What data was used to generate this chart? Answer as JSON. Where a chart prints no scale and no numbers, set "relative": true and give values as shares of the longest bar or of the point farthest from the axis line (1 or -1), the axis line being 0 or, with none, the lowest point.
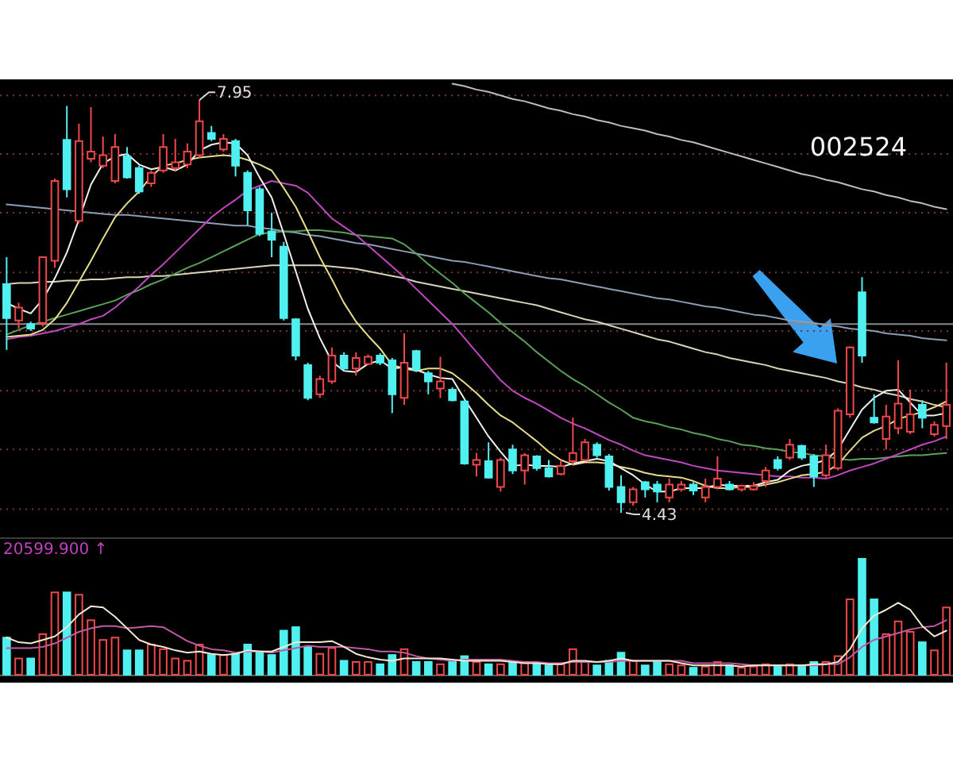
{
  "chart_data": [
    {
      "type": "candlestick",
      "title": "002524",
      "categories": [
        null,
        null,
        null,
        null,
        null,
        null,
        null,
        null,
        null,
        null,
        null,
        null,
        null,
        null,
        null,
        null,
        null,
        null,
        null,
        null,
        null,
        null,
        null,
        null,
        null,
        null,
        null,
        null,
        null,
        null,
        null,
        null,
        null,
        null,
        null,
        null,
        null,
        null,
        null,
        null,
        null,
        null,
        null,
        null,
        null,
        null,
        null,
        null,
        null,
        null,
        null,
        null,
        null,
        null,
        null,
        null,
        null,
        null,
        null,
        null,
        null,
        null,
        null,
        null,
        null,
        null,
        null,
        null,
        null,
        null,
        null,
        null,
        null,
        null,
        null,
        null,
        null,
        null,
        null
      ],
      "ohlc": [
        [
          6.38,
          6.61,
          5.82,
          6.09
        ],
        [
          6.07,
          6.22,
          6.0,
          6.18
        ],
        [
          6.04,
          6.06,
          5.98,
          6.0
        ],
        [
          6.05,
          6.61,
          6.02,
          6.61
        ],
        [
          6.58,
          7.28,
          6.52,
          7.26
        ],
        [
          7.61,
          7.9,
          7.12,
          7.19
        ],
        [
          6.92,
          7.75,
          6.9,
          7.6
        ],
        [
          7.45,
          7.89,
          7.42,
          7.51
        ],
        [
          7.39,
          7.64,
          7.37,
          7.48
        ],
        [
          7.26,
          7.66,
          7.24,
          7.55
        ],
        [
          7.47,
          7.55,
          7.28,
          7.29
        ],
        [
          7.37,
          7.39,
          7.15,
          7.17
        ],
        [
          7.24,
          7.35,
          7.21,
          7.33
        ],
        [
          7.35,
          7.66,
          7.33,
          7.55
        ],
        [
          7.37,
          7.62,
          7.35,
          7.42
        ],
        [
          7.4,
          7.58,
          7.37,
          7.51
        ],
        [
          7.48,
          7.95,
          7.46,
          7.77
        ],
        [
          7.67,
          7.73,
          7.6,
          7.62
        ],
        [
          7.53,
          7.66,
          7.51,
          7.62
        ],
        [
          7.6,
          7.62,
          7.3,
          7.39
        ],
        [
          7.33,
          7.35,
          6.88,
          7.01
        ],
        [
          7.19,
          7.21,
          6.79,
          6.81
        ],
        [
          6.83,
          6.99,
          6.61,
          6.76
        ],
        [
          6.7,
          6.74,
          6.07,
          6.09
        ],
        [
          6.08,
          6.09,
          5.73,
          5.77
        ],
        [
          5.69,
          5.71,
          5.39,
          5.41
        ],
        [
          5.44,
          5.6,
          5.41,
          5.57
        ],
        [
          5.55,
          5.84,
          5.53,
          5.77
        ],
        [
          5.77,
          5.8,
          5.65,
          5.66
        ],
        [
          5.66,
          5.8,
          5.6,
          5.75
        ],
        [
          5.7,
          5.78,
          5.69,
          5.76
        ],
        [
          5.77,
          5.79,
          5.69,
          5.71
        ],
        [
          5.73,
          5.75,
          5.28,
          5.44
        ],
        [
          5.41,
          5.96,
          5.35,
          5.71
        ],
        [
          5.81,
          5.82,
          5.63,
          5.65
        ],
        [
          5.62,
          5.64,
          5.44,
          5.55
        ],
        [
          5.49,
          5.76,
          5.41,
          5.55
        ],
        [
          5.48,
          5.5,
          5.38,
          5.39
        ],
        [
          5.38,
          5.39,
          4.84,
          4.85
        ],
        [
          4.84,
          4.94,
          4.74,
          4.88
        ],
        [
          4.87,
          5.03,
          4.72,
          4.73
        ],
        [
          4.65,
          4.9,
          4.61,
          4.88
        ],
        [
          4.97,
          5.01,
          4.76,
          4.79
        ],
        [
          4.79,
          4.94,
          4.67,
          4.92
        ],
        [
          4.91,
          4.92,
          4.79,
          4.81
        ],
        [
          4.81,
          4.88,
          4.73,
          4.74
        ],
        [
          4.76,
          4.88,
          4.75,
          4.83
        ],
        [
          4.87,
          5.24,
          4.84,
          4.94
        ],
        [
          4.88,
          5.06,
          4.87,
          5.03
        ],
        [
          5.01,
          5.03,
          4.9,
          4.92
        ],
        [
          4.91,
          4.93,
          4.62,
          4.65
        ],
        [
          4.65,
          4.75,
          4.43,
          4.52
        ],
        [
          4.52,
          4.65,
          4.49,
          4.63
        ],
        [
          4.69,
          4.7,
          4.56,
          4.63
        ],
        [
          4.67,
          4.7,
          4.52,
          4.61
        ],
        [
          4.56,
          4.72,
          4.52,
          4.67
        ],
        [
          4.63,
          4.7,
          4.61,
          4.67
        ],
        [
          4.67,
          4.69,
          4.58,
          4.62
        ],
        [
          4.56,
          4.72,
          4.52,
          4.65
        ],
        [
          4.65,
          4.91,
          4.63,
          4.72
        ],
        [
          4.67,
          4.7,
          4.62,
          4.63
        ],
        [
          4.63,
          4.67,
          4.61,
          4.66
        ],
        [
          4.63,
          4.69,
          4.62,
          4.66
        ],
        [
          4.7,
          4.82,
          4.65,
          4.79
        ],
        [
          4.88,
          4.91,
          4.79,
          4.81
        ],
        [
          4.9,
          5.06,
          4.88,
          5.01
        ],
        [
          5.0,
          5.01,
          4.88,
          4.9
        ],
        [
          4.91,
          4.93,
          4.65,
          4.74
        ],
        [
          4.75,
          5.01,
          4.73,
          4.92
        ],
        [
          4.81,
          5.32,
          4.79,
          5.3
        ],
        [
          5.27,
          5.85,
          5.24,
          5.84
        ],
        [
          6.31,
          6.44,
          5.71,
          5.77
        ],
        [
          5.24,
          5.44,
          5.19,
          5.2
        ],
        [
          5.06,
          5.35,
          4.97,
          5.25
        ],
        [
          5.15,
          5.73,
          5.1,
          5.36
        ],
        [
          5.12,
          5.48,
          5.1,
          5.27
        ],
        [
          5.35,
          5.39,
          5.15,
          5.24
        ],
        [
          5.1,
          5.21,
          5.08,
          5.18
        ],
        [
          5.17,
          5.71,
          5.06,
          5.35
        ]
      ],
      "colors": [
        "#50f0f0",
        "#f04848",
        "#50f0f0",
        "#f04848",
        "#f04848",
        "#50f0f0",
        "#f04848",
        "#f04848",
        "#f04848",
        "#f04848",
        "#50f0f0",
        "#50f0f0",
        "#f04848",
        "#f04848",
        "#f04848",
        "#f04848",
        "#f04848",
        "#50f0f0",
        "#f04848",
        "#50f0f0",
        "#50f0f0",
        "#50f0f0",
        "#50f0f0",
        "#50f0f0",
        "#50f0f0",
        "#50f0f0",
        "#f04848",
        "#f04848",
        "#50f0f0",
        "#f04848",
        "#f04848",
        "#50f0f0",
        "#50f0f0",
        "#f04848",
        "#50f0f0",
        "#50f0f0",
        "#f04848",
        "#50f0f0",
        "#50f0f0",
        "#f04848",
        "#50f0f0",
        "#f04848",
        "#50f0f0",
        "#f04848",
        "#50f0f0",
        "#50f0f0",
        "#f04848",
        "#f04848",
        "#f04848",
        "#50f0f0",
        "#50f0f0",
        "#50f0f0",
        "#f04848",
        "#50f0f0",
        "#50f0f0",
        "#f04848",
        "#f04848",
        "#50f0f0",
        "#f04848",
        "#f04848",
        "#50f0f0",
        "#f04848",
        "#f04848",
        "#f04848",
        "#50f0f0",
        "#f04848",
        "#50f0f0",
        "#50f0f0",
        "#f04848",
        "#f04848",
        "#f04848",
        "#50f0f0",
        "#50f0f0",
        "#f04848",
        "#f04848",
        "#f04848",
        "#50f0f0",
        "#f04848",
        "#f04848"
      ],
      "ylim": [
        4.24,
        8.1
      ],
      "yticks": [
        {
          "value": 7.99,
          "label": null
        },
        {
          "value": 7.49,
          "label": null
        },
        {
          "value": 6.99,
          "label": null
        },
        {
          "value": 6.48,
          "label": null
        },
        {
          "value": 5.98,
          "label": null
        },
        {
          "value": 5.47,
          "label": null
        },
        {
          "value": 4.97,
          "label": null
        },
        {
          "value": 4.46,
          "label": null
        }
      ],
      "grid": "y",
      "ref_lines": [
        {
          "axis": "y",
          "value": 6.04,
          "color": "#8a8a8a"
        }
      ],
      "series": [
        {
          "type": "line",
          "color": "#bcbcbc",
          "values": [
            null,
            null,
            null,
            null,
            null,
            null,
            null,
            null,
            null,
            null,
            null,
            null,
            null,
            null,
            null,
            null,
            null,
            null,
            null,
            null,
            null,
            null,
            null,
            null,
            null,
            null,
            null,
            null,
            null,
            null,
            null,
            null,
            null,
            null,
            null,
            null,
            null,
            8.09,
            8.07,
            8.04,
            8.02,
            7.99,
            7.96,
            7.94,
            7.91,
            7.88,
            7.86,
            7.83,
            7.81,
            7.78,
            7.76,
            7.73,
            7.71,
            7.69,
            7.66,
            7.64,
            7.61,
            7.59,
            7.56,
            7.53,
            7.5,
            7.47,
            7.44,
            7.41,
            7.38,
            7.35,
            7.32,
            7.3,
            7.27,
            7.25,
            7.22,
            7.19,
            7.17,
            7.14,
            7.12,
            7.09,
            7.07,
            7.04,
            7.02
          ]
        },
        {
          "type": "line",
          "color": "#8c9cb4",
          "values": [
            7.06,
            7.05,
            7.04,
            7.03,
            7.02,
            7.01,
            7.0,
            6.99,
            6.98,
            6.97,
            6.97,
            6.96,
            6.95,
            6.94,
            6.93,
            6.92,
            6.91,
            6.9,
            6.89,
            6.88,
            6.88,
            6.86,
            6.85,
            6.83,
            6.82,
            6.8,
            6.79,
            6.77,
            6.75,
            6.73,
            6.72,
            6.7,
            6.68,
            6.66,
            6.64,
            6.62,
            6.6,
            6.58,
            6.57,
            6.55,
            6.53,
            6.51,
            6.49,
            6.47,
            6.45,
            6.43,
            6.42,
            6.4,
            6.38,
            6.36,
            6.34,
            6.32,
            6.3,
            6.28,
            6.26,
            6.25,
            6.23,
            6.21,
            6.19,
            6.18,
            6.16,
            6.14,
            6.12,
            6.11,
            6.09,
            6.07,
            6.06,
            6.05,
            6.03,
            6.02,
            6.0,
            5.99,
            5.98,
            5.96,
            5.95,
            5.94,
            5.92,
            5.91,
            5.9
          ]
        },
        {
          "type": "line",
          "color": "#d8d4b8",
          "values": [
            6.38,
            6.39,
            6.39,
            6.4,
            6.4,
            6.41,
            6.41,
            6.42,
            6.42,
            6.43,
            6.44,
            6.44,
            6.45,
            6.45,
            6.46,
            6.47,
            6.48,
            6.49,
            6.5,
            6.51,
            6.52,
            6.53,
            6.54,
            6.54,
            6.54,
            6.54,
            6.54,
            6.53,
            6.52,
            6.51,
            6.49,
            6.47,
            6.45,
            6.43,
            6.4,
            6.38,
            6.36,
            6.34,
            6.32,
            6.3,
            6.28,
            6.26,
            6.24,
            6.22,
            6.2,
            6.17,
            6.14,
            6.11,
            6.08,
            6.06,
            6.03,
            6.0,
            5.97,
            5.94,
            5.91,
            5.89,
            5.86,
            5.83,
            5.8,
            5.78,
            5.75,
            5.73,
            5.71,
            5.69,
            5.66,
            5.64,
            5.62,
            5.6,
            5.58,
            5.55,
            5.53,
            5.5,
            5.48,
            5.45,
            5.43,
            5.4,
            5.38,
            5.35,
            5.33
          ]
        },
        {
          "type": "line",
          "color": "#5aa05a",
          "values": [
            5.95,
            5.99,
            6.03,
            6.06,
            6.09,
            6.12,
            6.15,
            6.18,
            6.21,
            6.24,
            6.29,
            6.33,
            6.38,
            6.42,
            6.47,
            6.52,
            6.56,
            6.61,
            6.66,
            6.71,
            6.76,
            6.81,
            6.82,
            6.83,
            6.83,
            6.84,
            6.84,
            6.83,
            6.82,
            6.8,
            6.79,
            6.78,
            6.77,
            6.72,
            6.64,
            6.55,
            6.47,
            6.39,
            6.3,
            6.22,
            6.14,
            6.05,
            5.97,
            5.89,
            5.8,
            5.72,
            5.64,
            5.57,
            5.51,
            5.44,
            5.37,
            5.31,
            5.24,
            5.21,
            5.19,
            5.16,
            5.14,
            5.11,
            5.09,
            5.06,
            5.04,
            5.01,
            5.0,
            4.98,
            4.97,
            4.95,
            4.94,
            4.92,
            4.91,
            4.89,
            4.88,
            4.89,
            4.89,
            4.9,
            4.91,
            4.92,
            4.92,
            4.93,
            4.94
          ]
        },
        {
          "type": "line",
          "color": "#c048c0",
          "values": [
            5.91,
            5.93,
            5.94,
            5.96,
            5.98,
            6.01,
            6.04,
            6.08,
            6.11,
            6.18,
            6.27,
            6.36,
            6.46,
            6.55,
            6.65,
            6.75,
            6.85,
            6.95,
            7.03,
            7.1,
            7.18,
            7.22,
            7.26,
            7.24,
            7.22,
            7.16,
            7.05,
            6.94,
            6.87,
            6.8,
            6.71,
            6.62,
            6.53,
            6.44,
            6.34,
            6.24,
            6.14,
            6.04,
            5.92,
            5.8,
            5.68,
            5.56,
            5.47,
            5.41,
            5.36,
            5.3,
            5.24,
            5.19,
            5.15,
            5.1,
            5.05,
            5.01,
            4.96,
            4.92,
            4.9,
            4.88,
            4.86,
            4.83,
            4.81,
            4.79,
            4.78,
            4.77,
            4.76,
            4.75,
            4.74,
            4.74,
            4.73,
            4.73,
            4.72,
            4.75,
            4.79,
            4.82,
            4.85,
            4.89,
            4.93,
            4.97,
            5.01,
            5.04,
            5.08
          ]
        },
        {
          "type": "line",
          "color": "#e6dc8c",
          "values": [
            5.93,
            5.94,
            5.95,
            5.99,
            6.08,
            6.22,
            6.4,
            6.58,
            6.77,
            6.95,
            7.07,
            7.17,
            7.3,
            7.39,
            7.41,
            7.44,
            7.46,
            7.47,
            7.48,
            7.47,
            7.44,
            7.4,
            7.35,
            7.2,
            7.04,
            6.83,
            6.61,
            6.42,
            6.22,
            6.06,
            5.94,
            5.83,
            5.69,
            5.66,
            5.64,
            5.66,
            5.66,
            5.62,
            5.54,
            5.45,
            5.35,
            5.26,
            5.2,
            5.12,
            5.04,
            4.95,
            4.88,
            4.84,
            4.86,
            4.86,
            4.85,
            4.82,
            4.8,
            4.77,
            4.75,
            4.74,
            4.73,
            4.7,
            4.66,
            4.64,
            4.64,
            4.65,
            4.65,
            4.67,
            4.69,
            4.72,
            4.75,
            4.76,
            4.78,
            4.84,
            4.96,
            5.07,
            5.13,
            5.17,
            5.23,
            5.26,
            5.29,
            5.33,
            5.38
          ]
        },
        {
          "type": "line",
          "color": "#f0f0f0",
          "values": [
            6.22,
            6.17,
            6.13,
            6.25,
            6.43,
            6.65,
            6.93,
            7.23,
            7.41,
            7.47,
            7.49,
            7.4,
            7.36,
            7.38,
            7.35,
            7.4,
            7.52,
            7.57,
            7.59,
            7.58,
            7.48,
            7.29,
            7.12,
            6.81,
            6.49,
            6.17,
            5.92,
            5.72,
            5.64,
            5.63,
            5.7,
            5.73,
            5.66,
            5.67,
            5.65,
            5.61,
            5.58,
            5.57,
            5.4,
            5.24,
            5.08,
            4.95,
            4.83,
            4.84,
            4.83,
            4.83,
            4.82,
            4.85,
            4.87,
            4.89,
            4.87,
            4.81,
            4.75,
            4.67,
            4.61,
            4.61,
            4.64,
            4.64,
            4.64,
            4.67,
            4.66,
            4.66,
            4.66,
            4.69,
            4.71,
            4.79,
            4.83,
            4.85,
            4.88,
            4.97,
            5.14,
            5.31,
            5.41,
            5.47,
            5.48,
            5.37,
            5.26,
            5.26,
            5.28
          ]
        }
      ],
      "annotations": [
        "7.95",
        "4.43"
      ]
    },
    {
      "type": "bar",
      "relative": true,
      "categories": [
        null,
        null,
        null,
        null,
        null,
        null,
        null,
        null,
        null,
        null,
        null,
        null,
        null,
        null,
        null,
        null,
        null,
        null,
        null,
        null,
        null,
        null,
        null,
        null,
        null,
        null,
        null,
        null,
        null,
        null,
        null,
        null,
        null,
        null,
        null,
        null,
        null,
        null,
        null,
        null,
        null,
        null,
        null,
        null,
        null,
        null,
        null,
        null,
        null,
        null,
        null,
        null,
        null,
        null,
        null,
        null,
        null,
        null,
        null,
        null,
        null,
        null,
        null,
        null,
        null,
        null,
        null,
        null,
        null,
        null,
        null,
        null,
        null,
        null,
        null,
        null,
        null,
        null,
        null
      ],
      "series": [
        {
          "colors": [
            "#50f0f0",
            "#f04848",
            "#50f0f0",
            "#f04848",
            "#f04848",
            "#50f0f0",
            "#f04848",
            "#f04848",
            "#f04848",
            "#f04848",
            "#50f0f0",
            "#50f0f0",
            "#f04848",
            "#f04848",
            "#f04848",
            "#f04848",
            "#f04848",
            "#50f0f0",
            "#f04848",
            "#50f0f0",
            "#50f0f0",
            "#50f0f0",
            "#50f0f0",
            "#50f0f0",
            "#50f0f0",
            "#50f0f0",
            "#f04848",
            "#f04848",
            "#50f0f0",
            "#f04848",
            "#f04848",
            "#50f0f0",
            "#50f0f0",
            "#f04848",
            "#50f0f0",
            "#50f0f0",
            "#f04848",
            "#50f0f0",
            "#50f0f0",
            "#f04848",
            "#50f0f0",
            "#f04848",
            "#50f0f0",
            "#f04848",
            "#50f0f0",
            "#50f0f0",
            "#f04848",
            "#f04848",
            "#f04848",
            "#50f0f0",
            "#50f0f0",
            "#50f0f0",
            "#f04848",
            "#50f0f0",
            "#50f0f0",
            "#f04848",
            "#f04848",
            "#50f0f0",
            "#f04848",
            "#f04848",
            "#50f0f0",
            "#f04848",
            "#f04848",
            "#f04848",
            "#50f0f0",
            "#f04848",
            "#50f0f0",
            "#50f0f0",
            "#f04848",
            "#f04848",
            "#f04848",
            "#50f0f0",
            "#50f0f0",
            "#f04848",
            "#f04848",
            "#f04848",
            "#50f0f0",
            "#f04848",
            "#f04848"
          ],
          "values": [
            0.32,
            0.14,
            0.14,
            0.35,
            0.71,
            0.71,
            0.69,
            0.47,
            0.3,
            0.32,
            0.21,
            0.21,
            0.26,
            0.22,
            0.14,
            0.12,
            0.26,
            0.17,
            0.17,
            0.18,
            0.26,
            0.2,
            0.17,
            0.38,
            0.41,
            0.24,
            0.18,
            0.23,
            0.12,
            0.11,
            0.11,
            0.09,
            0.17,
            0.22,
            0.11,
            0.11,
            0.09,
            0.12,
            0.16,
            0.11,
            0.09,
            0.09,
            0.11,
            0.1,
            0.09,
            0.08,
            0.09,
            0.22,
            0.11,
            0.08,
            0.12,
            0.19,
            0.12,
            0.08,
            0.11,
            0.09,
            0.08,
            0.06,
            0.07,
            0.11,
            0.08,
            0.06,
            0.07,
            0.09,
            0.08,
            0.09,
            0.08,
            0.11,
            0.11,
            0.16,
            0.65,
            1,
            0.65,
            0.35,
            0.46,
            0.37,
            0.28,
            0.21,
            0.58
          ]
        },
        {
          "type": "line",
          "color": "#c05aa0",
          "values": [
            0.23,
            0.23,
            0.23,
            0.24,
            0.27,
            0.32,
            0.37,
            0.4,
            0.42,
            0.42,
            0.4,
            0.41,
            0.42,
            0.41,
            0.35,
            0.29,
            0.25,
            0.22,
            0.21,
            0.19,
            0.2,
            0.2,
            0.19,
            0.21,
            0.23,
            0.25,
            0.24,
            0.24,
            0.24,
            0.23,
            0.22,
            0.2,
            0.2,
            0.19,
            0.16,
            0.14,
            0.13,
            0.12,
            0.13,
            0.13,
            0.13,
            0.13,
            0.12,
            0.11,
            0.11,
            0.1,
            0.1,
            0.11,
            0.11,
            0.11,
            0.11,
            0.12,
            0.12,
            0.12,
            0.12,
            0.12,
            0.12,
            0.1,
            0.1,
            0.1,
            0.1,
            0.09,
            0.08,
            0.08,
            0.08,
            0.08,
            0.08,
            0.08,
            0.09,
            0.09,
            0.15,
            0.24,
            0.3,
            0.33,
            0.36,
            0.39,
            0.41,
            0.42,
            0.47
          ]
        },
        {
          "type": "line",
          "color": "#f0e8d0",
          "values": [
            0.32,
            0.28,
            0.27,
            0.3,
            0.33,
            0.41,
            0.52,
            0.59,
            0.58,
            0.5,
            0.4,
            0.3,
            0.26,
            0.24,
            0.21,
            0.19,
            0.2,
            0.18,
            0.17,
            0.18,
            0.21,
            0.2,
            0.2,
            0.24,
            0.28,
            0.28,
            0.28,
            0.29,
            0.24,
            0.18,
            0.15,
            0.13,
            0.12,
            0.14,
            0.14,
            0.14,
            0.14,
            0.13,
            0.12,
            0.12,
            0.12,
            0.12,
            0.11,
            0.1,
            0.1,
            0.09,
            0.09,
            0.12,
            0.12,
            0.11,
            0.12,
            0.14,
            0.12,
            0.12,
            0.12,
            0.12,
            0.1,
            0.08,
            0.08,
            0.08,
            0.08,
            0.07,
            0.08,
            0.08,
            0.08,
            0.08,
            0.08,
            0.09,
            0.09,
            0.11,
            0.22,
            0.4,
            0.51,
            0.56,
            0.62,
            0.56,
            0.42,
            0.33,
            0.38
          ]
        }
      ],
      "annotations": [
        "20599.900 ↑"
      ]
    }
  ]
}
